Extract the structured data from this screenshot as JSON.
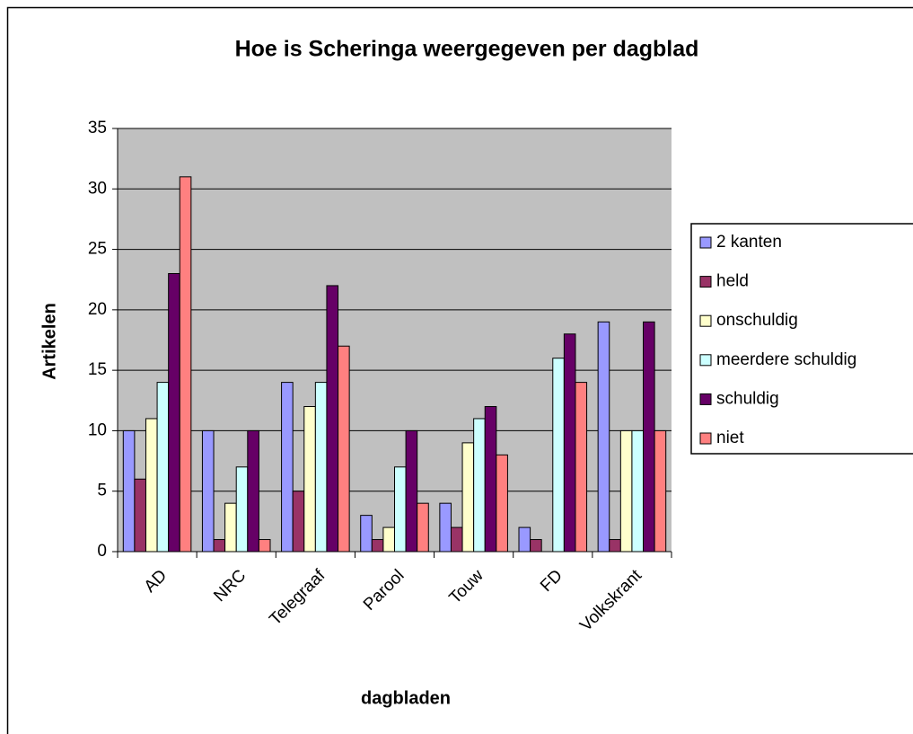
{
  "chart_data": {
    "type": "bar",
    "title": "Hoe is Scheringa weergegeven per dagblad",
    "x_label": "dagbladen",
    "y_label": "Artikelen",
    "categories": [
      "AD",
      "NRC",
      "Telegraaf",
      "Parool",
      "Touw",
      "FD",
      "Volkskrant"
    ],
    "series": [
      {
        "name": "2 kanten",
        "color": "#9999ff",
        "values": [
          10,
          10,
          14,
          3,
          4,
          2,
          19
        ]
      },
      {
        "name": "held",
        "color": "#993366",
        "values": [
          6,
          1,
          5,
          1,
          2,
          1,
          1
        ]
      },
      {
        "name": "onschuldig",
        "color": "#ffffcc",
        "values": [
          11,
          4,
          12,
          2,
          9,
          0,
          10
        ]
      },
      {
        "name": "meerdere schuldig",
        "color": "#ccffff",
        "values": [
          14,
          7,
          14,
          7,
          11,
          16,
          10
        ]
      },
      {
        "name": "schuldig",
        "color": "#660066",
        "values": [
          23,
          10,
          22,
          10,
          12,
          18,
          19
        ]
      },
      {
        "name": "niet",
        "color": "#ff8080",
        "values": [
          31,
          1,
          17,
          4,
          8,
          14,
          10
        ]
      }
    ],
    "ylim": [
      0,
      35
    ],
    "yticks": [
      0,
      5,
      10,
      15,
      20,
      25,
      30,
      35
    ],
    "grid": true,
    "legend": "right"
  }
}
